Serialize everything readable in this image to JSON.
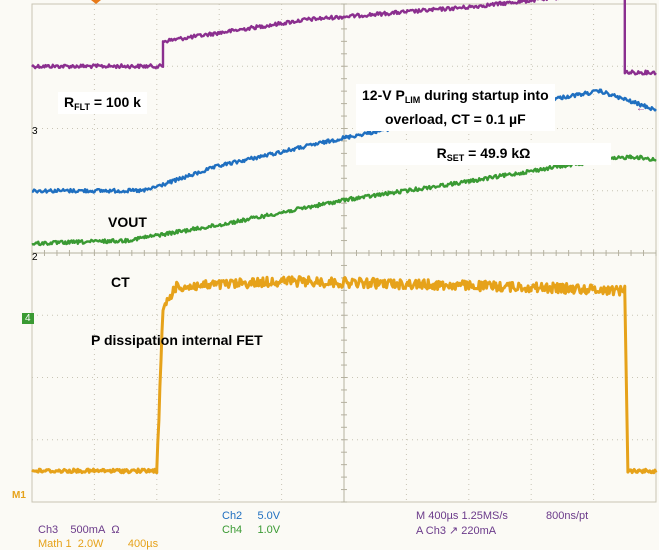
{
  "colors": {
    "ch1": "#8b2f8f",
    "ch2": "#1f6fc0",
    "ch3": "#e6a21a",
    "ch4": "#3a9a33",
    "grid": "#c8c4b4",
    "readout": "#6b3a8a",
    "readout_ch2": "#1f6fc0",
    "readout_ch4": "#3a9a33"
  },
  "annotations": {
    "rflt_main": "R",
    "rflt_sub": "FLT",
    "rflt_value": " = 100 k",
    "plim_line1_prefix": "12-V P",
    "plim_line1_sub": "LIM",
    "plim_line1_suffix": " during startup into",
    "plim_line2": "overload, CT = 0.1 µF",
    "rset_main": "R",
    "rset_sub": "SET",
    "rset_value": " = 49.9 kΩ",
    "vout": "VOUT",
    "ct": "CT",
    "pdiss": "P dissipation internal FET"
  },
  "markers": {
    "ch1": "3",
    "ch2": "2",
    "ch4": "4",
    "math": "M1"
  },
  "readouts": {
    "ch3_name": "Ch3",
    "ch3_scale": "500mA",
    "ch3_unit": "Ω",
    "math_name": "Math 1",
    "math_scale": "2.0W",
    "math_time": "400µs",
    "ch2_name": "Ch2",
    "ch2_scale": "5.0V",
    "ch4_name": "Ch4",
    "ch4_scale": "1.0V",
    "timebase": "M 400µs 1.25MS/s",
    "sample": "800ns/pt",
    "trigger": "A  Ch3  ↗  220mA"
  },
  "chart_data": {
    "type": "line",
    "title": "",
    "xlabel": "",
    "ylabel": "",
    "grid": true,
    "divisions": {
      "x": 10,
      "y": 8
    },
    "xlim": [
      0,
      10
    ],
    "ylim": [
      0,
      8
    ],
    "series": [
      {
        "name": "",
        "channel": "ch1",
        "x": [
          0,
          2.1,
          2.1,
          4.4,
          7.0,
          9.3,
          9.5,
          9.5,
          10
        ],
        "y": [
          7.0,
          7.0,
          7.4,
          7.75,
          7.95,
          8.2,
          8.3,
          6.9,
          6.9
        ]
      },
      {
        "name": "",
        "channel": "ch2",
        "x": [
          0,
          1.8,
          3.0,
          5.0,
          7.0,
          9.1,
          9.7,
          10
        ],
        "y": [
          5.0,
          5.0,
          5.4,
          5.85,
          6.25,
          6.6,
          6.4,
          6.3
        ]
      },
      {
        "name": "",
        "channel": "ch4",
        "x": [
          0,
          1.5,
          3.0,
          5.0,
          7.0,
          8.5,
          9.6,
          10
        ],
        "y": [
          4.15,
          4.2,
          4.45,
          4.85,
          5.15,
          5.4,
          5.55,
          5.5
        ]
      },
      {
        "name": "",
        "channel": "ch3",
        "x": [
          0,
          2.0,
          2.1,
          2.3,
          4.0,
          6.0,
          8.0,
          9.5,
          9.55,
          10
        ],
        "y": [
          0.5,
          0.5,
          3.1,
          3.45,
          3.55,
          3.5,
          3.45,
          3.4,
          0.5,
          0.5
        ]
      }
    ]
  }
}
